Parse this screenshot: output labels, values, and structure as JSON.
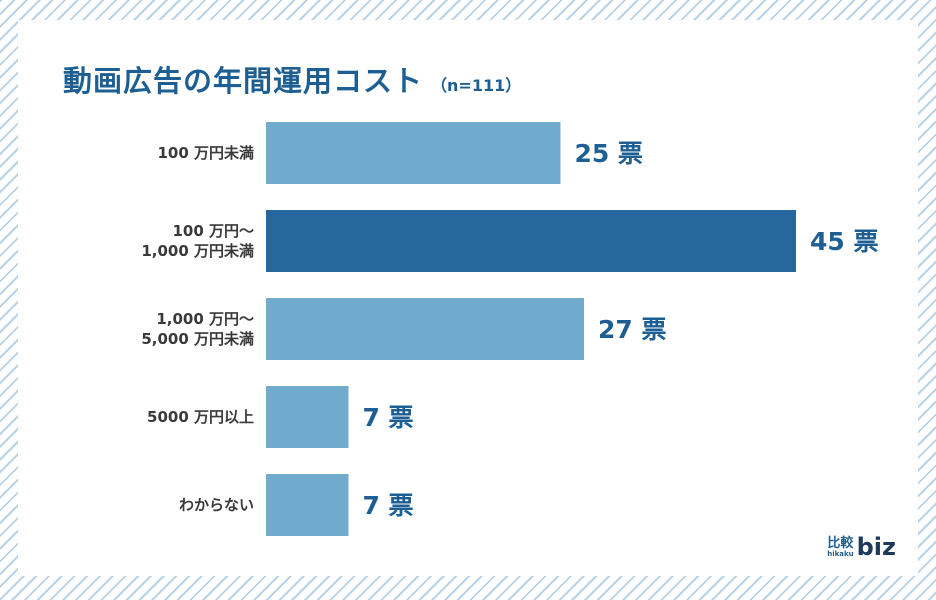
{
  "chart_data": {
    "type": "bar",
    "orientation": "horizontal",
    "title": "動画広告の年間運用コスト",
    "sample_size": "（n=111）",
    "categories": [
      [
        "100 万円未満"
      ],
      [
        "100 万円〜",
        "1,000 万円未満"
      ],
      [
        "1,000 万円〜",
        "5,000 万円未満"
      ],
      [
        "5000 万円以上"
      ],
      [
        "わからない"
      ]
    ],
    "values": [
      25,
      45,
      27,
      7,
      7
    ],
    "value_unit": "票",
    "xlim": [
      0,
      45
    ],
    "highlight_index": 1,
    "colors": {
      "bar": "#70aacd",
      "highlight": "#26679e",
      "label": "#1e5f93"
    },
    "grid": false
  },
  "logo": {
    "kanji": "比較",
    "sub": "hikaku",
    "word": "biz"
  }
}
